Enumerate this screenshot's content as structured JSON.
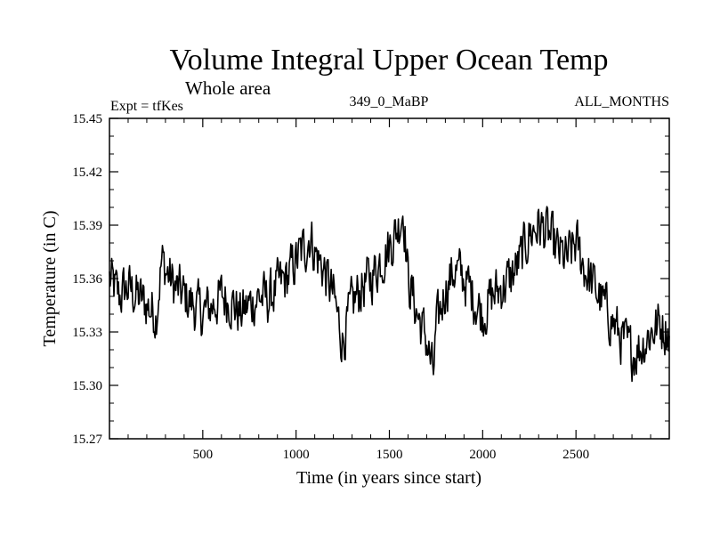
{
  "chart_data": {
    "type": "line",
    "title": "Volume Integral Upper Ocean Temp",
    "subtitle": "Whole area",
    "experiment_label": "Expt = tfKes",
    "period_label": "349_0_MaBP",
    "months_label": "ALL_MONTHS",
    "xlabel": "Time (in years since start)",
    "ylabel": "Temperature (in C)",
    "xlim": [
      0,
      3000
    ],
    "ylim": [
      15.27,
      15.45
    ],
    "x_ticks": [
      500,
      1000,
      1500,
      2000,
      2500
    ],
    "y_ticks": [
      "15.27",
      "15.30",
      "15.33",
      "15.36",
      "15.39",
      "15.42",
      "15.45"
    ],
    "grid": false,
    "line_color": "#000000",
    "series": [
      {
        "x": [
          0,
          50,
          100,
          150,
          200,
          250,
          280,
          300,
          350,
          400,
          450,
          500,
          550,
          600,
          650,
          700,
          750,
          800,
          850,
          900,
          950,
          1000,
          1050,
          1075,
          1100,
          1150,
          1200,
          1250,
          1300,
          1350,
          1400,
          1450,
          1500,
          1550,
          1575,
          1600,
          1650,
          1700,
          1735,
          1750,
          1800,
          1850,
          1900,
          1950,
          2000,
          2050,
          2100,
          2150,
          2200,
          2250,
          2300,
          2350,
          2400,
          2450,
          2500,
          2550,
          2600,
          2650,
          2700,
          2750,
          2800,
          2850,
          2900,
          2950,
          3000
        ],
        "values": [
          15.36,
          15.35,
          15.355,
          15.35,
          15.345,
          15.34,
          15.37,
          15.365,
          15.355,
          15.35,
          15.345,
          15.34,
          15.345,
          15.35,
          15.348,
          15.34,
          15.345,
          15.35,
          15.348,
          15.355,
          15.36,
          15.37,
          15.378,
          15.385,
          15.375,
          15.365,
          15.35,
          15.325,
          15.345,
          15.355,
          15.36,
          15.37,
          15.378,
          15.39,
          15.4,
          15.36,
          15.34,
          15.325,
          15.305,
          15.33,
          15.355,
          15.365,
          15.36,
          15.35,
          15.34,
          15.35,
          15.355,
          15.36,
          15.37,
          15.385,
          15.39,
          15.385,
          15.375,
          15.37,
          15.38,
          15.365,
          15.355,
          15.345,
          15.335,
          15.325,
          15.318,
          15.322,
          15.33,
          15.335,
          15.33
        ]
      }
    ]
  }
}
